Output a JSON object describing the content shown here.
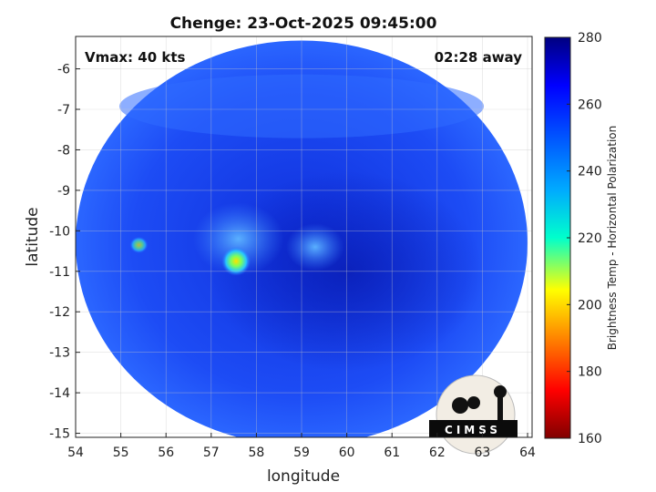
{
  "chart_data": {
    "type": "heatmap",
    "title": "Chenge: 23-Oct-2025 09:45:00",
    "xlabel": "longitude",
    "ylabel": "latitude",
    "xlim": [
      54,
      64.1
    ],
    "ylim": [
      -15.1,
      -5.2
    ],
    "xticks": [
      "54",
      "55",
      "56",
      "57",
      "58",
      "59",
      "60",
      "61",
      "62",
      "63",
      "64"
    ],
    "yticks": [
      "-6",
      "-7",
      "-8",
      "-9",
      "-10",
      "-11",
      "-12",
      "-13",
      "-14",
      "-15"
    ],
    "grid": true,
    "annotations": {
      "left": "Vmax: 40 kts",
      "right": "02:28 away"
    },
    "colorbar": {
      "label": "Brightness Temp - Horizontal Polarization",
      "range": [
        160,
        280
      ],
      "ticks": [
        "280",
        "260",
        "240",
        "220",
        "200",
        "180",
        "160"
      ],
      "colormap": "jet"
    },
    "image_disc": {
      "center_lon": 59.0,
      "center_lat": -10.3,
      "radius_deg": 5.0
    },
    "background_value": 262,
    "features": [
      {
        "name": "warm spot",
        "lon": 57.55,
        "lat": -10.75,
        "value": 215
      },
      {
        "name": "small spot",
        "lon": 55.4,
        "lat": -10.35,
        "value": 242
      },
      {
        "name": "eye region",
        "lon": 59.3,
        "lat": -10.4,
        "value": 248
      },
      {
        "name": "cloud band",
        "lon": 57.6,
        "lat": -10.2,
        "value": 250
      },
      {
        "name": "dark spiral",
        "lon": 60.0,
        "lat": -11.0,
        "value": 268
      }
    ]
  },
  "logo": {
    "text": "CIMSS"
  }
}
